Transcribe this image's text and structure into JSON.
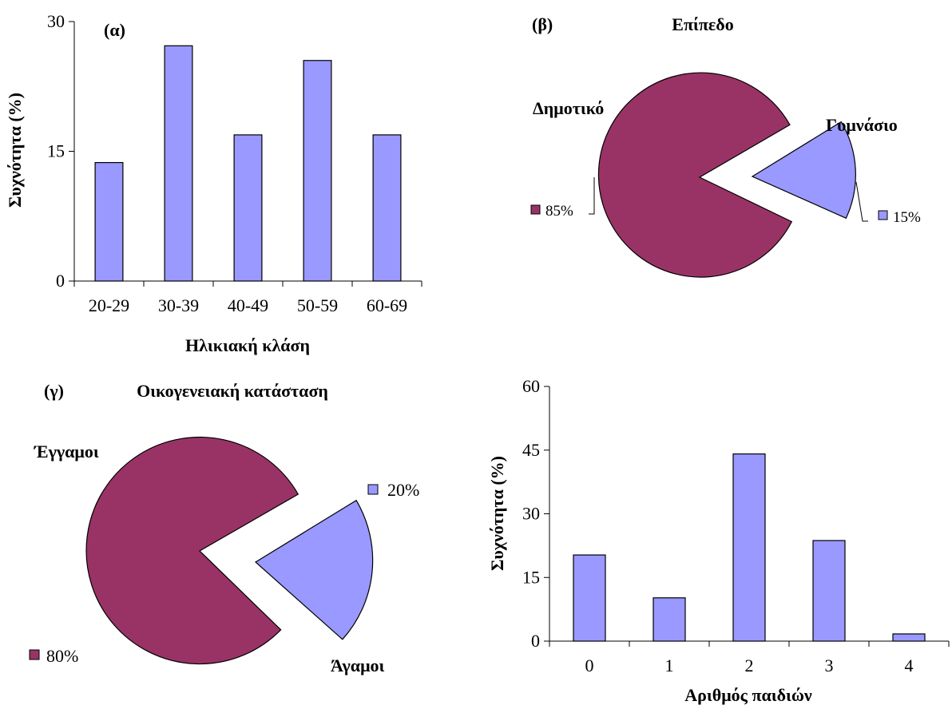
{
  "colors": {
    "bar": "#9999ff",
    "slice_primary": "#993366",
    "slice_secondary": "#9999ff",
    "stroke": "#000000"
  },
  "chart_data": [
    {
      "type": "bar",
      "panel_label": "(α)",
      "title": "",
      "categories": [
        "20-29",
        "30-39",
        "40-49",
        "50-59",
        "60-69"
      ],
      "values": [
        13.7,
        27.2,
        16.9,
        25.5,
        16.9
      ],
      "ylim": [
        0,
        30
      ],
      "yticks": [
        0,
        15,
        30
      ],
      "xlabel": "Ηλικιακή κλάση",
      "ylabel": "Συχνότητα (%)",
      "grid": false
    },
    {
      "type": "pie",
      "panel_label": "(β)",
      "title": "Επίπεδο",
      "labels": [
        "Δημοτικό",
        "Γυμνάσιο"
      ],
      "values": [
        85,
        15
      ],
      "value_labels": [
        "85%",
        "15%"
      ],
      "legend": "beside-slices"
    },
    {
      "type": "pie",
      "panel_label": "(γ)",
      "title": "Οικογενειακή κατάσταση",
      "labels": [
        "Έγγαμοι",
        "Άγαμοι"
      ],
      "values": [
        80,
        20
      ],
      "value_labels": [
        "80%",
        "20%"
      ],
      "legend": "beside-slices"
    },
    {
      "type": "bar",
      "panel_label": "",
      "title": "",
      "categories": [
        "0",
        "1",
        "2",
        "3",
        "4"
      ],
      "values": [
        20.3,
        10.2,
        44.1,
        23.7,
        1.7
      ],
      "ylim": [
        0,
        60
      ],
      "yticks": [
        0,
        15,
        30,
        45,
        60
      ],
      "xlabel": "Αριθμός παιδιών",
      "ylabel": "Συχνότητα (%)",
      "grid": false
    }
  ]
}
